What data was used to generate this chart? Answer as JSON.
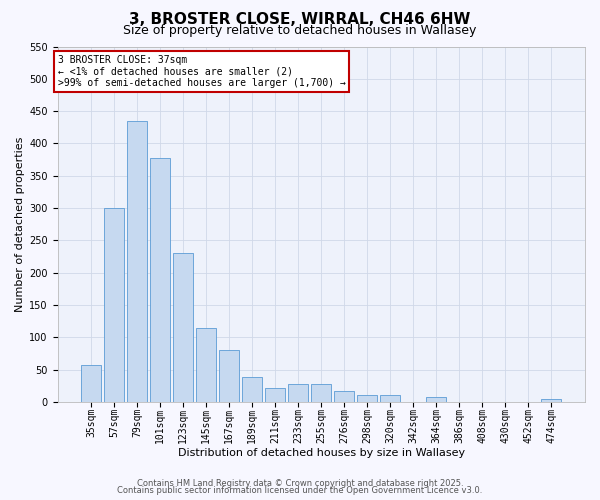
{
  "title": "3, BROSTER CLOSE, WIRRAL, CH46 6HW",
  "subtitle": "Size of property relative to detached houses in Wallasey",
  "xlabel": "Distribution of detached houses by size in Wallasey",
  "ylabel": "Number of detached properties",
  "bar_labels": [
    "35sqm",
    "57sqm",
    "79sqm",
    "101sqm",
    "123sqm",
    "145sqm",
    "167sqm",
    "189sqm",
    "211sqm",
    "233sqm",
    "255sqm",
    "276sqm",
    "298sqm",
    "320sqm",
    "342sqm",
    "364sqm",
    "386sqm",
    "408sqm",
    "430sqm",
    "452sqm",
    "474sqm"
  ],
  "bar_values": [
    57,
    300,
    435,
    378,
    230,
    115,
    80,
    38,
    22,
    27,
    27,
    17,
    10,
    10,
    0,
    8,
    0,
    0,
    0,
    0,
    4
  ],
  "bar_color": "#c6d9f0",
  "bar_edge_color": "#5b9bd5",
  "ylim": [
    0,
    550
  ],
  "yticks": [
    0,
    50,
    100,
    150,
    200,
    250,
    300,
    350,
    400,
    450,
    500,
    550
  ],
  "annotation_title": "3 BROSTER CLOSE: 37sqm",
  "annotation_line1": "← <1% of detached houses are smaller (2)",
  "annotation_line2": ">99% of semi-detached houses are larger (1,700) →",
  "annotation_box_color": "#ffffff",
  "annotation_box_edge_color": "#c00000",
  "footer_line1": "Contains HM Land Registry data © Crown copyright and database right 2025.",
  "footer_line2": "Contains public sector information licensed under the Open Government Licence v3.0.",
  "bg_color": "#f7f7ff",
  "plot_bg_color": "#eef2fb",
  "grid_color": "#d0d8e8",
  "title_fontsize": 11,
  "subtitle_fontsize": 9,
  "axis_label_fontsize": 8,
  "tick_fontsize": 7,
  "annotation_fontsize": 7,
  "footer_fontsize": 6
}
